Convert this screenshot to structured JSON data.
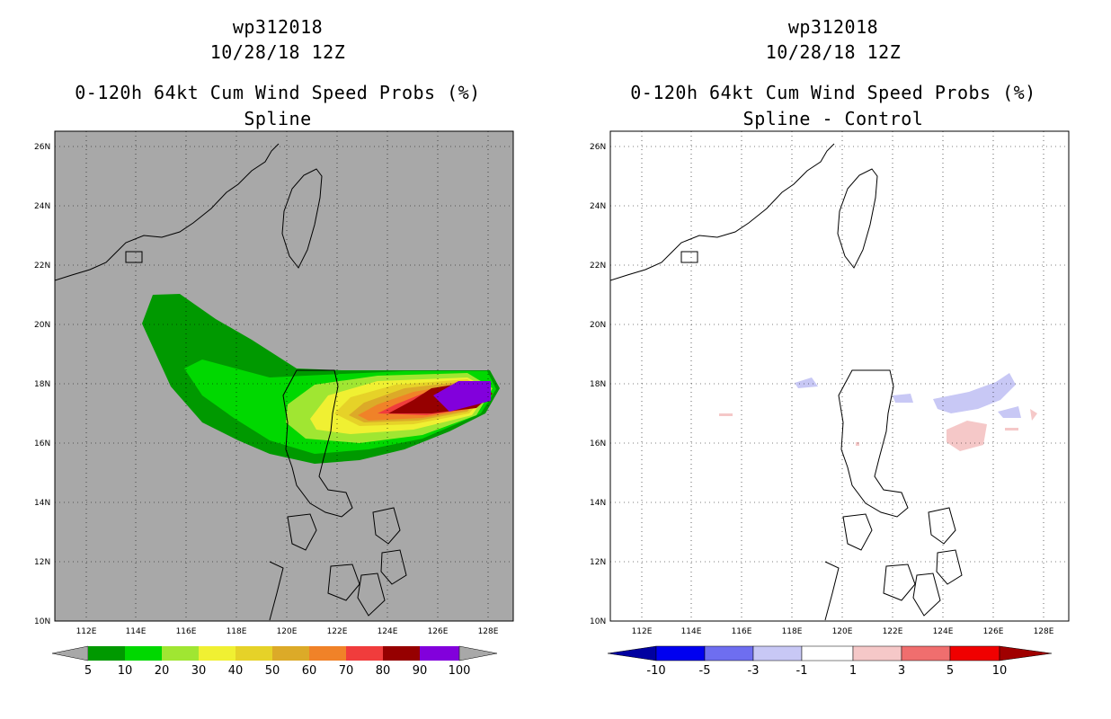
{
  "left_panel": {
    "title_line1": "wp312018",
    "title_line2": "10/28/18 12Z",
    "title_line3": "0-120h 64kt Cum Wind Speed Probs (%)",
    "title_line4": "Spline",
    "background_color": "#a8a8a8",
    "colorbar": {
      "colors": [
        "#009900",
        "#00d800",
        "#a0e632",
        "#f0f032",
        "#e6d228",
        "#dcaa28",
        "#f08228",
        "#f03c3c",
        "#960000",
        "#8200dc"
      ],
      "labels": [
        "5",
        "10",
        "20",
        "30",
        "40",
        "50",
        "60",
        "70",
        "80",
        "90",
        "100"
      ],
      "end_color": "#a8a8a8"
    }
  },
  "right_panel": {
    "title_line1": "wp312018",
    "title_line2": "10/28/18 12Z",
    "title_line3": "0-120h 64kt Cum Wind Speed Probs (%)",
    "title_line4": "Spline - Control",
    "background_color": "#ffffff",
    "colorbar": {
      "colors": [
        "#0000a0",
        "#0000f0",
        "#6e6ef0",
        "#c8c8f5",
        "#ffffff",
        "#f5c8c8",
        "#f06e6e",
        "#f00000",
        "#a00000"
      ],
      "labels": [
        "-10",
        "-5",
        "-3",
        "-1",
        "1",
        "3",
        "5",
        "10"
      ]
    }
  },
  "map": {
    "lon_labels": [
      "112E",
      "114E",
      "116E",
      "118E",
      "120E",
      "122E",
      "124E",
      "126E",
      "128E"
    ],
    "lat_labels": [
      "10N",
      "12N",
      "14N",
      "16N",
      "18N",
      "20N",
      "22N",
      "24N",
      "26N"
    ],
    "lon_range": [
      111,
      129.3
    ],
    "lat_range": [
      10,
      26.5
    ],
    "gridlines": true
  }
}
